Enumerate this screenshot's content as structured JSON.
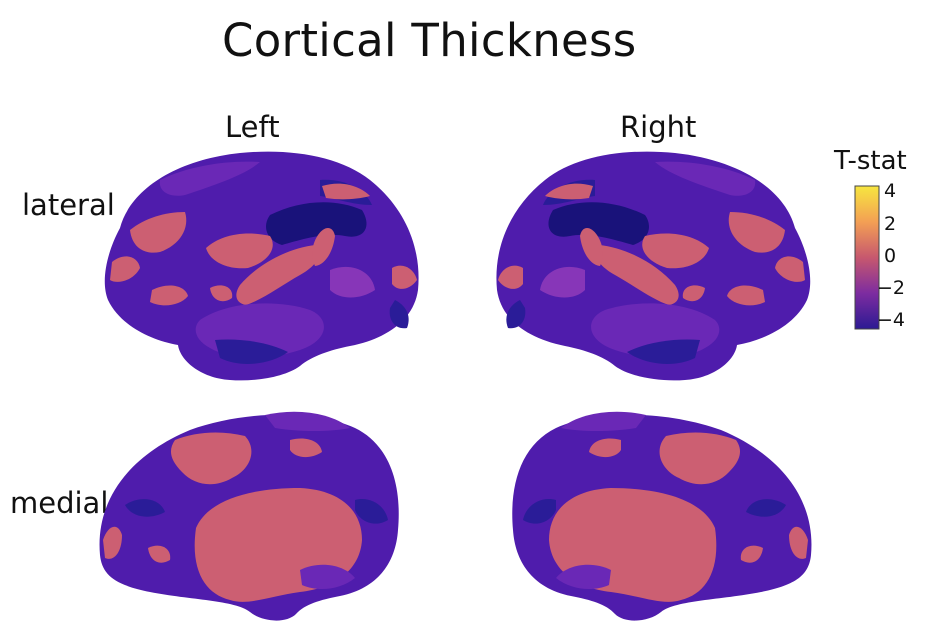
{
  "title": "Cortical Thickness",
  "columns": {
    "left": "Left",
    "right": "Right"
  },
  "rows": {
    "lateral": "lateral",
    "medial": "medial"
  },
  "colorbar": {
    "title": "T-stat",
    "ticks": [
      "4",
      "2",
      "0",
      "−2",
      "−4"
    ],
    "range": [
      -4,
      4
    ],
    "colors": [
      "#f7e63f",
      "#f3a054",
      "#c7586e",
      "#7d2ca0",
      "#2c1a93"
    ]
  },
  "palette": {
    "base_purple": "#4f1cac",
    "mid_purple": "#6a28b6",
    "dark_navy": "#19127a",
    "deep_blue": "#2a1c98",
    "light_purple": "#8736b8",
    "pink": "#cc5f72"
  }
}
